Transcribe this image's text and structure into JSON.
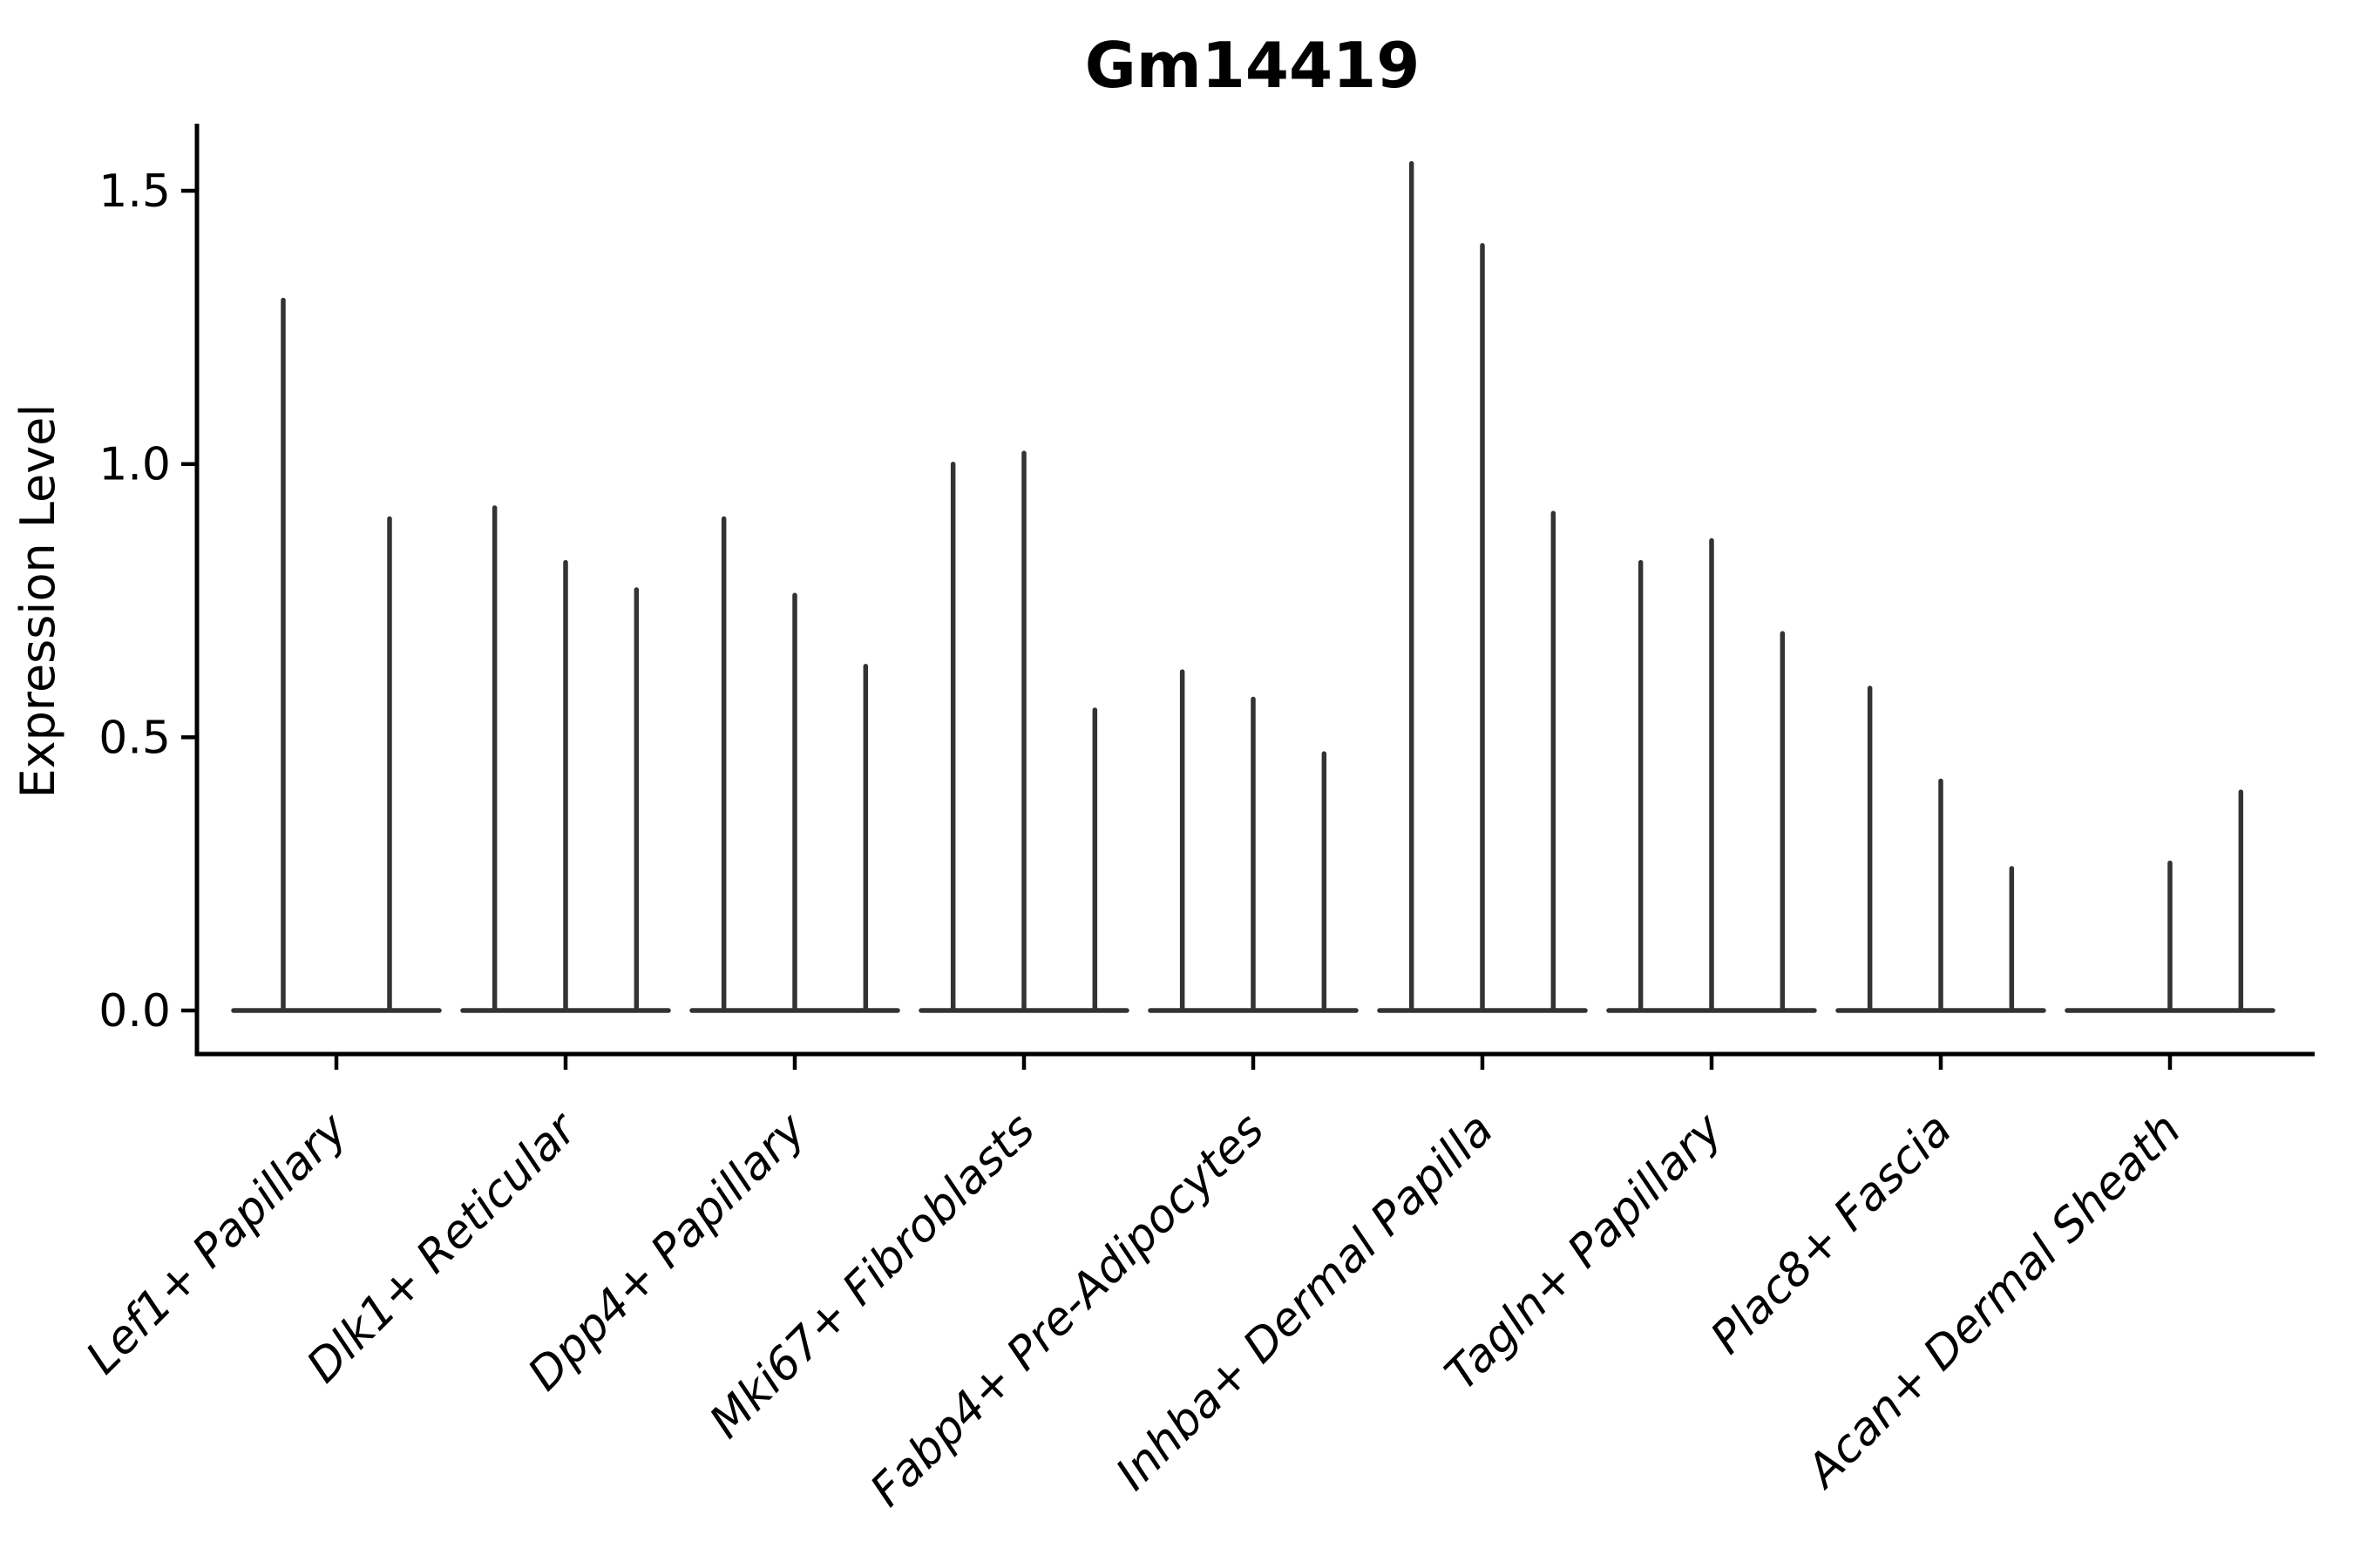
{
  "title": "Gm14419",
  "colors": {
    "background": "#ffffff",
    "violin": "#333333",
    "axis": "#000000",
    "text": "#000000"
  },
  "chart_data": {
    "type": "violin",
    "title": "Gm14419",
    "xlabel": "",
    "ylabel": "Expression Level",
    "ylim": [
      0,
      1.6
    ],
    "yticks": [
      {
        "value": 0.0,
        "label": "0.0"
      },
      {
        "value": 0.5,
        "label": "0.5"
      },
      {
        "value": 1.0,
        "label": "1.0"
      },
      {
        "value": 1.5,
        "label": "1.5"
      }
    ],
    "grid": false,
    "legend": "none",
    "categories": [
      "Lef1+ Papillary",
      "Dlk1+ Reticular",
      "Dpp4+ Papillary",
      "Mki67+ Fibroblasts",
      "Fabp4+ Pre-Adipocytes",
      "Inhba+ Dermal Papilla",
      "Tagln+ Papillary",
      "Plac8+ Fascia",
      "Acan+ Dermal Sheath"
    ],
    "groups": [
      {
        "category": "Lef1+ Papillary",
        "violin_max_values": [
          1.3,
          0.9
        ]
      },
      {
        "category": "Dlk1+ Reticular",
        "violin_max_values": [
          0.92,
          0.82,
          0.77
        ]
      },
      {
        "category": "Dpp4+ Papillary",
        "violin_max_values": [
          0.9,
          0.76,
          0.63
        ]
      },
      {
        "category": "Mki67+ Fibroblasts",
        "violin_max_values": [
          1.0,
          1.02,
          0.55
        ]
      },
      {
        "category": "Fabp4+ Pre-Adipocytes",
        "violin_max_values": [
          0.62,
          0.57,
          0.47
        ]
      },
      {
        "category": "Inhba+ Dermal Papilla",
        "violin_max_values": [
          1.55,
          1.4,
          0.91
        ]
      },
      {
        "category": "Tagln+ Papillary",
        "violin_max_values": [
          0.82,
          0.86,
          0.69
        ]
      },
      {
        "category": "Plac8+ Fascia",
        "violin_max_values": [
          0.59,
          0.42,
          0.26
        ]
      },
      {
        "category": "Acan+ Dermal Sheath",
        "violin_max_values": [
          null,
          0.27,
          0.4
        ]
      }
    ],
    "description": "Violin plot of Gm14419 expression; violins are collapsed to thin spikes at zero with vertical tails up to the max expressed value per sub-violin"
  }
}
